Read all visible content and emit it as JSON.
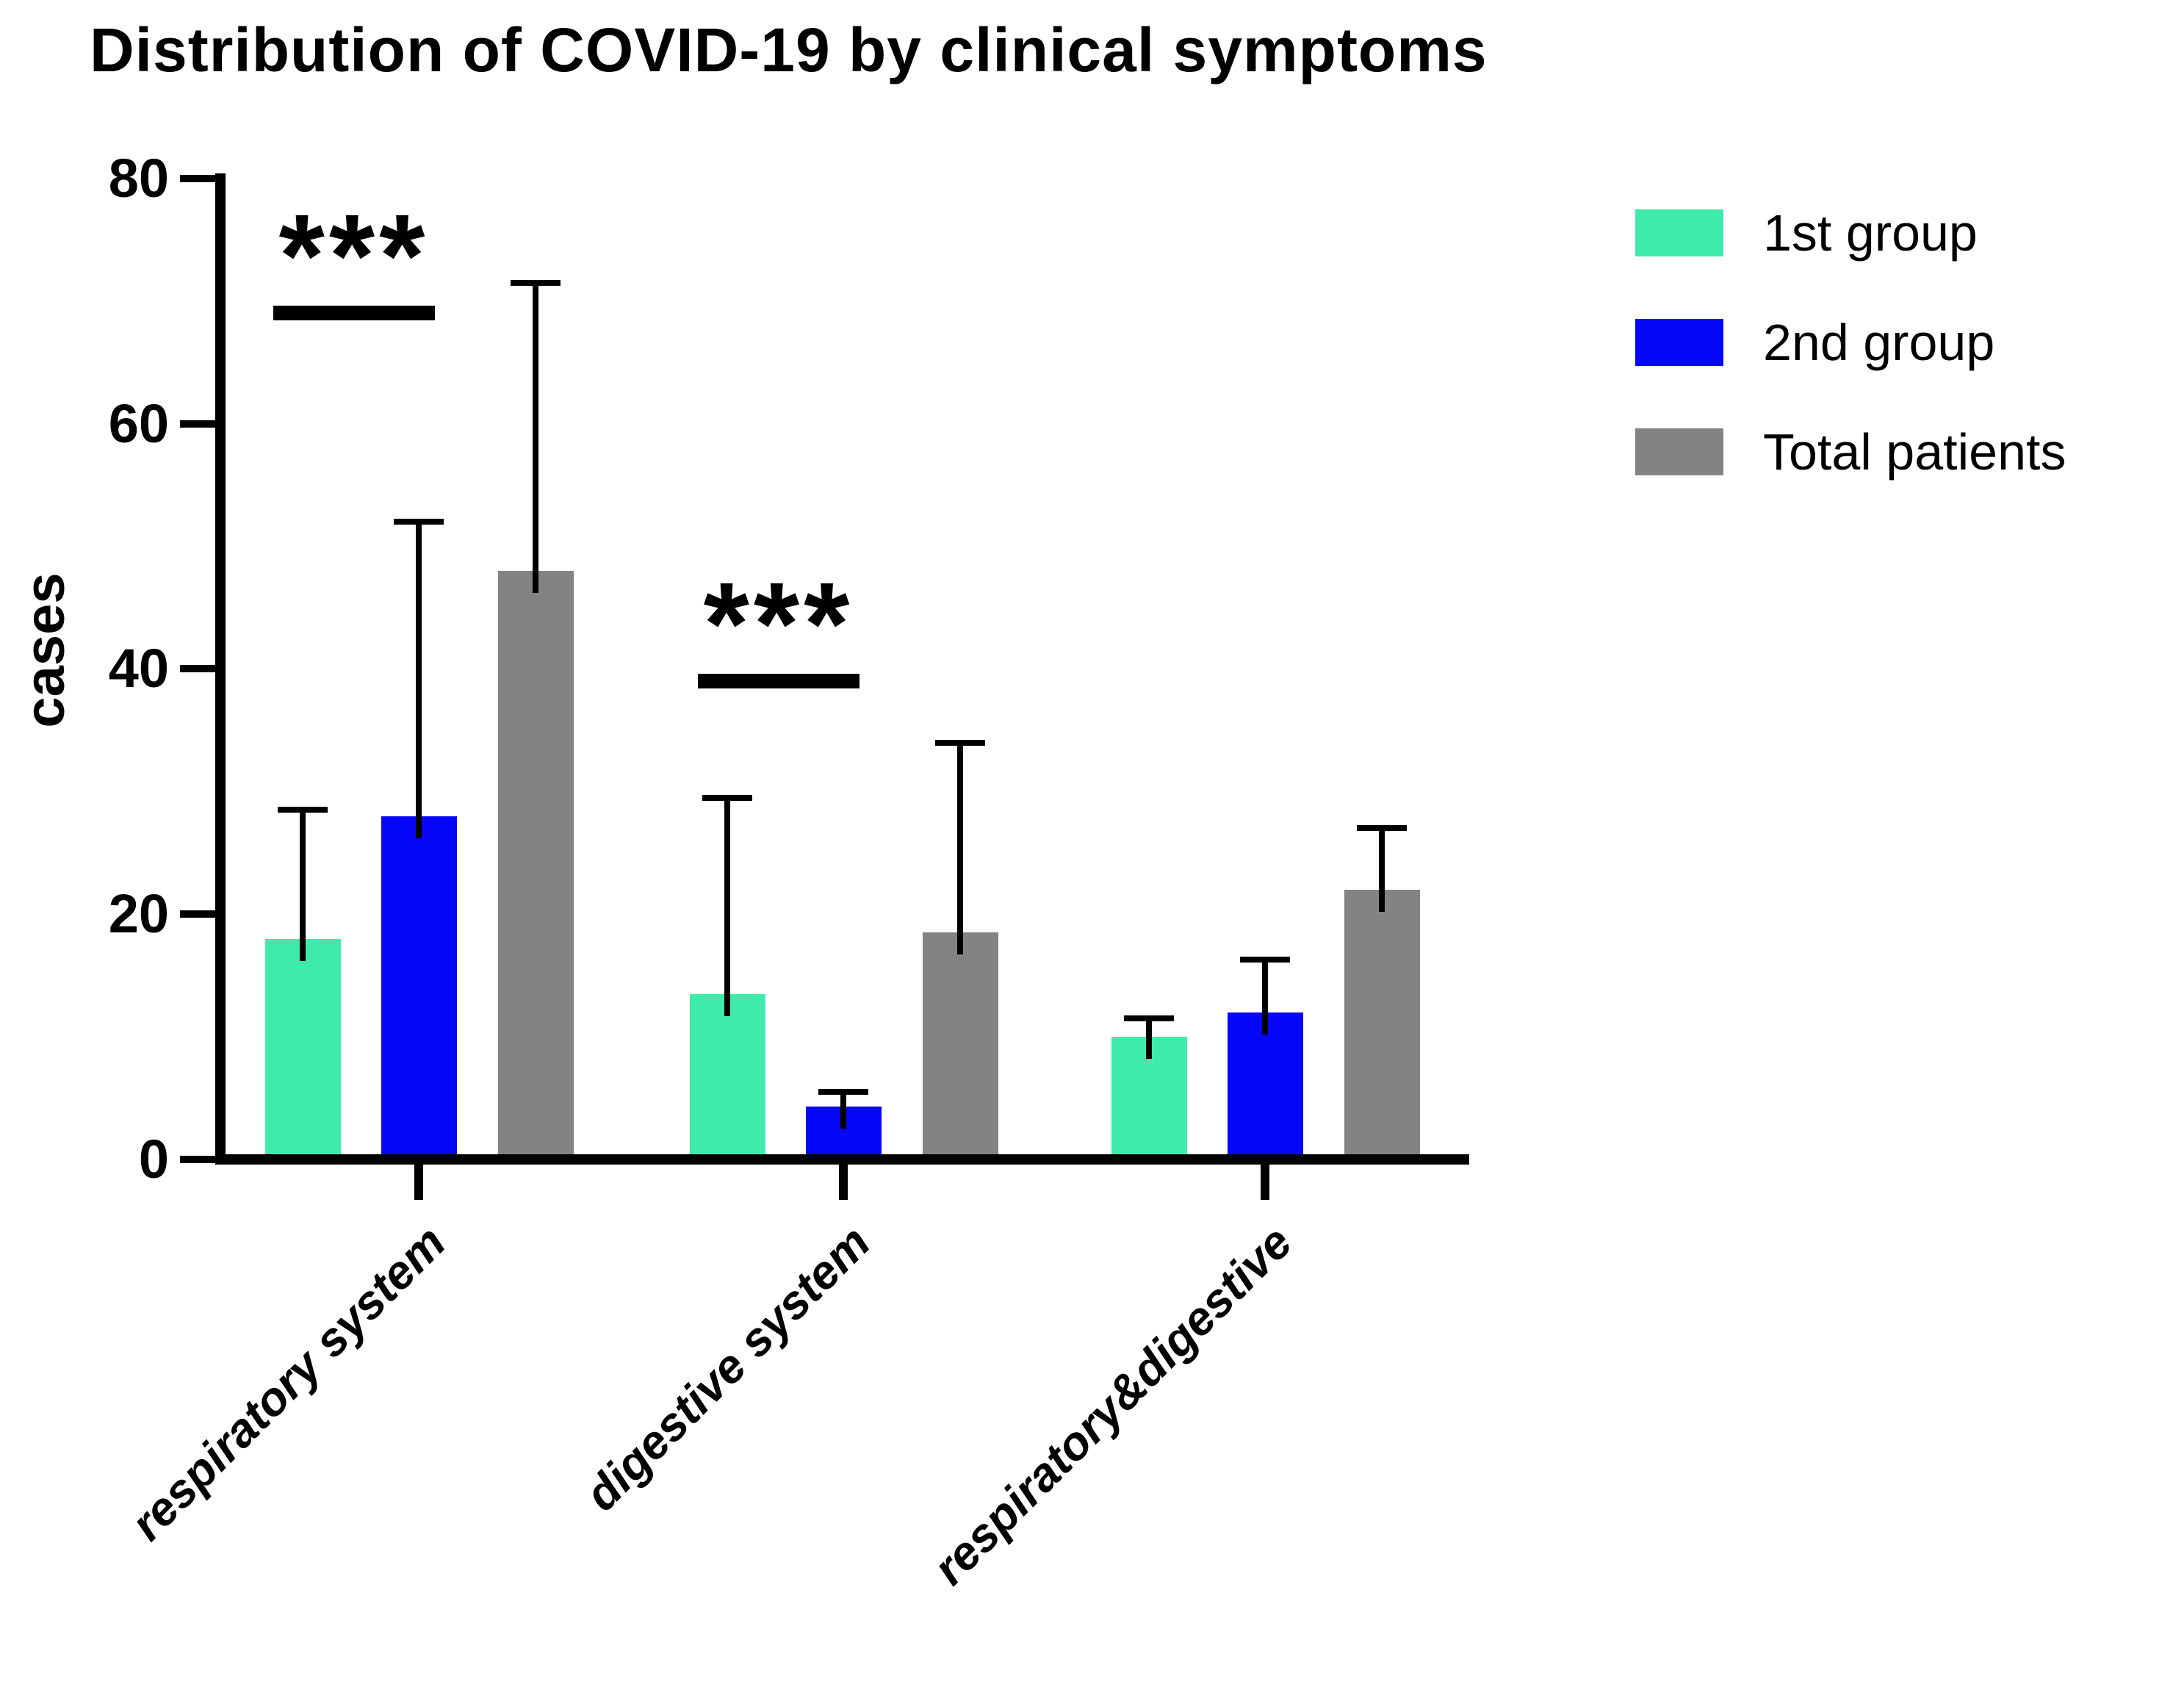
{
  "chart_data": {
    "type": "bar",
    "title": "Distribution of COVID-19 by clinical symptoms",
    "ylabel": "cases",
    "xlabel": "",
    "ylim": [
      0,
      80
    ],
    "yticks": [
      0,
      20,
      40,
      60,
      80
    ],
    "grid": false,
    "legend_position": "right",
    "axis_color": "#000000",
    "categories": [
      "respiratory system",
      "digestive system",
      "respiratory&digestive"
    ],
    "series": [
      {
        "name": "1st group",
        "color": "#3FEBAA",
        "values": [
          18,
          13.5,
          10
        ],
        "error_up": [
          10.5,
          16,
          1.5
        ]
      },
      {
        "name": "2nd group",
        "color": "#0606F8",
        "values": [
          28,
          4.3,
          12
        ],
        "error_up": [
          24,
          1.2,
          4.3
        ]
      },
      {
        "name": "Total patients",
        "color": "#838383",
        "values": [
          48,
          18.5,
          22
        ],
        "error_up": [
          23.5,
          15.5,
          5
        ]
      }
    ],
    "significance": [
      {
        "category_index": 0,
        "text": "***",
        "y_value": 69
      },
      {
        "category_index": 1,
        "text": "***",
        "y_value": 39
      }
    ]
  }
}
